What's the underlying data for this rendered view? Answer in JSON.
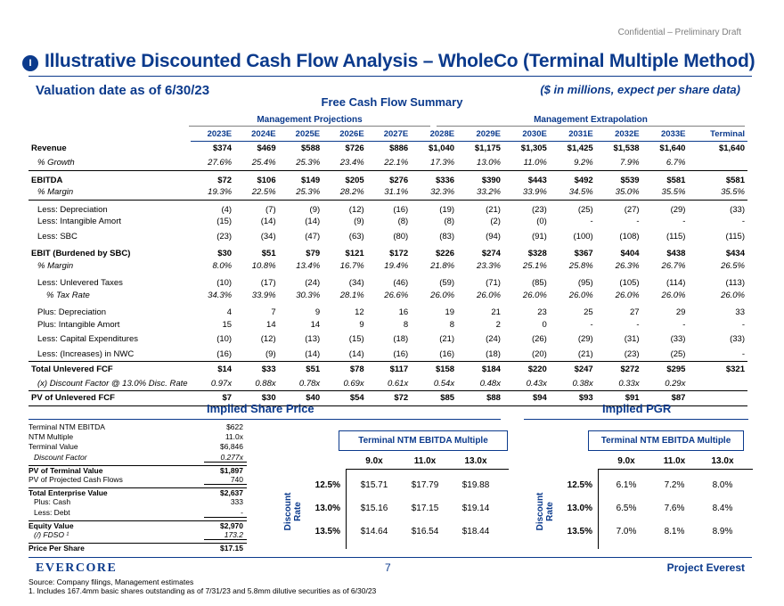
{
  "header": {
    "confidential": "Confidential – Preliminary Draft",
    "section_badge": "I",
    "title": "Illustrative Discounted Cash Flow Analysis – WholeCo (Terminal Multiple Method)",
    "valuation_date": "Valuation date as of 6/30/23",
    "units": "($ in millions, expect per share data)",
    "fcf_title": "Free Cash Flow Summary"
  },
  "fcf": {
    "group_mgmt": "Management Projections",
    "group_ext": "Management Extrapolation",
    "years": [
      "2023E",
      "2024E",
      "2025E",
      "2026E",
      "2027E",
      "2028E",
      "2029E",
      "2030E",
      "2031E",
      "2032E",
      "2033E",
      "Terminal"
    ],
    "rows": [
      {
        "label": "Revenue",
        "cls": "b",
        "vals": [
          "$374",
          "$469",
          "$588",
          "$726",
          "$886",
          "$1,040",
          "$1,175",
          "$1,305",
          "$1,425",
          "$1,538",
          "$1,640",
          "$1,640"
        ]
      },
      {
        "label": "% Growth",
        "cls": "it ind",
        "vals": [
          "27.6%",
          "25.4%",
          "25.3%",
          "23.4%",
          "22.1%",
          "17.3%",
          "13.0%",
          "11.0%",
          "9.2%",
          "7.9%",
          "6.7%",
          ""
        ]
      },
      {
        "label": "EBITDA",
        "cls": "b box-top gap",
        "vals": [
          "$72",
          "$106",
          "$149",
          "$205",
          "$276",
          "$336",
          "$390",
          "$443",
          "$492",
          "$539",
          "$581",
          "$581"
        ]
      },
      {
        "label": "% Margin",
        "cls": "it ind box-bot",
        "vals": [
          "19.3%",
          "22.5%",
          "25.3%",
          "28.2%",
          "31.1%",
          "32.3%",
          "33.2%",
          "33.9%",
          "34.5%",
          "35.0%",
          "35.5%",
          "35.5%"
        ]
      },
      {
        "label": "Less: Depreciation",
        "cls": "ind gap",
        "vals": [
          "(4)",
          "(7)",
          "(9)",
          "(12)",
          "(16)",
          "(19)",
          "(21)",
          "(23)",
          "(25)",
          "(27)",
          "(29)",
          "(33)"
        ]
      },
      {
        "label": "Less: Intangible Amort",
        "cls": "ind",
        "vals": [
          "(15)",
          "(14)",
          "(14)",
          "(9)",
          "(8)",
          "(8)",
          "(2)",
          "(0)",
          "-",
          "-",
          "-",
          "-"
        ]
      },
      {
        "label": "Less: SBC",
        "cls": "ind",
        "vals": [
          "(23)",
          "(34)",
          "(47)",
          "(63)",
          "(80)",
          "(83)",
          "(94)",
          "(91)",
          "(100)",
          "(108)",
          "(115)",
          "(115)"
        ]
      },
      {
        "label": "EBIT (Burdened by SBC)",
        "cls": "b gap",
        "vals": [
          "$30",
          "$51",
          "$79",
          "$121",
          "$172",
          "$226",
          "$274",
          "$328",
          "$367",
          "$404",
          "$438",
          "$434"
        ]
      },
      {
        "label": "% Margin",
        "cls": "it ind",
        "vals": [
          "8.0%",
          "10.8%",
          "13.4%",
          "16.7%",
          "19.4%",
          "21.8%",
          "23.3%",
          "25.1%",
          "25.8%",
          "26.3%",
          "26.7%",
          "26.5%"
        ]
      },
      {
        "label": "Less: Unlevered Taxes",
        "cls": "ind gap",
        "vals": [
          "(10)",
          "(17)",
          "(24)",
          "(34)",
          "(46)",
          "(59)",
          "(71)",
          "(85)",
          "(95)",
          "(105)",
          "(114)",
          "(113)"
        ]
      },
      {
        "label": "% Tax Rate",
        "cls": "it ind2",
        "vals": [
          "34.3%",
          "33.9%",
          "30.3%",
          "28.1%",
          "26.6%",
          "26.0%",
          "26.0%",
          "26.0%",
          "26.0%",
          "26.0%",
          "26.0%",
          "26.0%"
        ]
      },
      {
        "label": "Plus: Depreciation",
        "cls": "ind gap",
        "vals": [
          "4",
          "7",
          "9",
          "12",
          "16",
          "19",
          "21",
          "23",
          "25",
          "27",
          "29",
          "33"
        ]
      },
      {
        "label": "Plus: Intangible Amort",
        "cls": "ind",
        "vals": [
          "15",
          "14",
          "14",
          "9",
          "8",
          "8",
          "2",
          "0",
          "-",
          "-",
          "-",
          "-"
        ]
      },
      {
        "label": "Less: Capital Expenditures",
        "cls": "ind",
        "vals": [
          "(10)",
          "(12)",
          "(13)",
          "(15)",
          "(18)",
          "(21)",
          "(24)",
          "(26)",
          "(29)",
          "(31)",
          "(33)",
          "(33)"
        ]
      },
      {
        "label": "Less: (Increases) in NWC",
        "cls": "ind",
        "vals": [
          "(16)",
          "(9)",
          "(14)",
          "(14)",
          "(16)",
          "(16)",
          "(18)",
          "(20)",
          "(21)",
          "(23)",
          "(25)",
          "-"
        ]
      },
      {
        "label": "Total Unlevered FCF",
        "cls": "total",
        "vals": [
          "$14",
          "$33",
          "$51",
          "$78",
          "$117",
          "$158",
          "$184",
          "$220",
          "$247",
          "$272",
          "$295",
          "$321"
        ]
      },
      {
        "label": "(x) Discount Factor @ 13.0% Disc. Rate",
        "cls": "it ind",
        "vals": [
          "0.97x",
          "0.88x",
          "0.78x",
          "0.69x",
          "0.61x",
          "0.54x",
          "0.48x",
          "0.43x",
          "0.38x",
          "0.33x",
          "0.29x",
          ""
        ]
      },
      {
        "label": "PV of Unlevered FCF",
        "cls": "pv",
        "vals": [
          "$7",
          "$30",
          "$40",
          "$54",
          "$72",
          "$85",
          "$88",
          "$94",
          "$93",
          "$91",
          "$87",
          ""
        ]
      }
    ]
  },
  "share_price": {
    "title": "Implied Share Price",
    "rows": [
      {
        "label": "Terminal NTM EBITDA",
        "value": "$622",
        "cls": ""
      },
      {
        "label": "NTM Multiple",
        "value": "11.0x",
        "cls": ""
      },
      {
        "label": "Terminal Value",
        "value": "$6,846",
        "cls": ""
      },
      {
        "label": "Discount Factor",
        "value": "0.277x",
        "cls": "it ind ul"
      },
      {
        "label": "PV of Terminal Value",
        "value": "$1,897",
        "cls": "b topl"
      },
      {
        "label": "PV of Projected Cash Flows",
        "value": "740",
        "cls": "ul"
      },
      {
        "label": "Total Enterprise Value",
        "value": "$2,637",
        "cls": "b topl"
      },
      {
        "label": "Plus: Cash",
        "value": "333",
        "cls": "ind"
      },
      {
        "label": "Less: Debt",
        "value": "-",
        "cls": "ind ul"
      },
      {
        "label": "Equity Value",
        "value": "$2,970",
        "cls": "b topl"
      },
      {
        "label": "(/) FDSO ¹",
        "value": "173.2",
        "cls": "it ind ul"
      },
      {
        "label": "Price Per Share",
        "value": "$17.15",
        "cls": "b topl"
      }
    ],
    "sens_header": "Terminal NTM EBITDA Multiple",
    "multiples": [
      "9.0x",
      "11.0x",
      "13.0x"
    ],
    "axis_label": "Discount Rate",
    "rates": [
      "12.5%",
      "13.0%",
      "13.5%"
    ],
    "grid": [
      [
        "$15.71",
        "$17.79",
        "$19.88"
      ],
      [
        "$15.16",
        "$17.15",
        "$19.14"
      ],
      [
        "$14.64",
        "$16.54",
        "$18.44"
      ]
    ]
  },
  "pgr": {
    "title": "Implied PGR",
    "sens_header": "Terminal NTM EBITDA Multiple",
    "multiples": [
      "9.0x",
      "11.0x",
      "13.0x"
    ],
    "axis_label": "Discount Rate",
    "rates": [
      "12.5%",
      "13.0%",
      "13.5%"
    ],
    "grid": [
      [
        "6.1%",
        "7.2%",
        "8.0%"
      ],
      [
        "6.5%",
        "7.6%",
        "8.4%"
      ],
      [
        "7.0%",
        "8.1%",
        "8.9%"
      ]
    ]
  },
  "footer": {
    "logo": "EVERCORE",
    "page": "7",
    "project": "Project Everest",
    "source": "Source: Company filings, Management estimates",
    "note": "1.    Includes 167.4mm basic shares outstanding as of 7/31/23 and 5.8mm dilutive securities as of 6/30/23"
  },
  "colors": {
    "brand": "#0b3a8c"
  }
}
